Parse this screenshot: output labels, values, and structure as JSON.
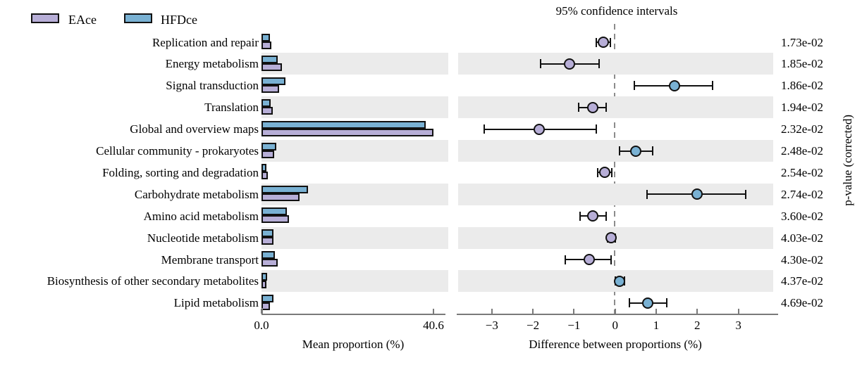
{
  "titles": {
    "ci_title": "95% confidence intervals",
    "left_xlabel": "Mean proportion (%)",
    "right_xlabel": "Difference between proportions (%)",
    "pvalue_axis_label": "p-value (corrected)"
  },
  "legend": [
    {
      "label": "EAce",
      "color": "#b7aed7"
    },
    {
      "label": "HFDce",
      "color": "#79b1d3"
    }
  ],
  "colors": {
    "eace_fill": "#b7aed7",
    "hfdce_fill": "#79b1d3",
    "ink": "#111111",
    "band": "#ebebeb",
    "axis": "#7a7a7a",
    "dashed_line": "#8c8c8c"
  },
  "chart_data": {
    "type": "bar",
    "subtype": "stamp-extended-error-bar",
    "groups": [
      "EAce",
      "HFDce"
    ],
    "left_axis": {
      "label": "Mean proportion (%)",
      "range": [
        0,
        40.6
      ],
      "ticks": [
        {
          "v": 0,
          "label": "0.0"
        },
        {
          "v": 40.6,
          "label": "40.6"
        }
      ]
    },
    "right_axis": {
      "label": "Difference between proportions (%)",
      "range": [
        -3.8,
        3.9
      ],
      "ticks": [
        {
          "v": -3,
          "label": "−3"
        },
        {
          "v": -2,
          "label": "−2"
        },
        {
          "v": -1,
          "label": "−1"
        },
        {
          "v": 0,
          "label": "0"
        },
        {
          "v": 1,
          "label": "1"
        },
        {
          "v": 2,
          "label": "2"
        },
        {
          "v": 3,
          "label": "3"
        }
      ]
    },
    "rows": [
      {
        "category": "Replication and repair",
        "mean_HFDce": 2.0,
        "mean_EAce": 2.3,
        "diff": -0.28,
        "ci": [
          -0.46,
          -0.11
        ],
        "enriched": "EAce",
        "p_value": "1.73e-02"
      },
      {
        "category": "Energy metabolism",
        "mean_HFDce": 3.8,
        "mean_EAce": 4.9,
        "diff": -1.11,
        "ci": [
          -1.82,
          -0.39
        ],
        "enriched": "EAce",
        "p_value": "1.85e-02"
      },
      {
        "category": "Signal transduction",
        "mean_HFDce": 5.6,
        "mean_EAce": 4.2,
        "diff": 1.44,
        "ci": [
          0.47,
          2.37
        ],
        "enriched": "HFDce",
        "p_value": "1.86e-02"
      },
      {
        "category": "Translation",
        "mean_HFDce": 2.1,
        "mean_EAce": 2.6,
        "diff": -0.54,
        "ci": [
          -0.88,
          -0.22
        ],
        "enriched": "EAce",
        "p_value": "1.94e-02"
      },
      {
        "category": "Global and overview maps",
        "mean_HFDce": 38.8,
        "mean_EAce": 40.6,
        "diff": -1.84,
        "ci": [
          -3.18,
          -0.46
        ],
        "enriched": "EAce",
        "p_value": "2.32e-02"
      },
      {
        "category": "Cellular community - prokaryotes",
        "mean_HFDce": 3.5,
        "mean_EAce": 3.0,
        "diff": 0.51,
        "ci": [
          0.11,
          0.91
        ],
        "enriched": "HFDce",
        "p_value": "2.48e-02"
      },
      {
        "category": "Folding, sorting and degradation",
        "mean_HFDce": 1.2,
        "mean_EAce": 1.5,
        "diff": -0.25,
        "ci": [
          -0.42,
          -0.08
        ],
        "enriched": "EAce",
        "p_value": "2.54e-02"
      },
      {
        "category": "Carbohydrate metabolism",
        "mean_HFDce": 11.0,
        "mean_EAce": 9.0,
        "diff": 2.0,
        "ci": [
          0.78,
          3.18
        ],
        "enriched": "HFDce",
        "p_value": "2.74e-02"
      },
      {
        "category": "Amino acid metabolism",
        "mean_HFDce": 6.0,
        "mean_EAce": 6.5,
        "diff": -0.54,
        "ci": [
          -0.86,
          -0.21
        ],
        "enriched": "EAce",
        "p_value": "3.60e-02"
      },
      {
        "category": "Nucleotide metabolism",
        "mean_HFDce": 2.8,
        "mean_EAce": 2.9,
        "diff": -0.09,
        "ci": [
          -0.19,
          0.01
        ],
        "enriched": "EAce",
        "p_value": "4.03e-02"
      },
      {
        "category": "Membrane transport",
        "mean_HFDce": 3.2,
        "mean_EAce": 3.8,
        "diff": -0.63,
        "ci": [
          -1.21,
          -0.09
        ],
        "enriched": "EAce",
        "p_value": "4.30e-02"
      },
      {
        "category": "Biosynthesis of other secondary metabolites",
        "mean_HFDce": 1.3,
        "mean_EAce": 1.2,
        "diff": 0.11,
        "ci": [
          0.0,
          0.23
        ],
        "enriched": "HFDce",
        "p_value": "4.37e-02"
      },
      {
        "category": "Lipid metabolism",
        "mean_HFDce": 2.8,
        "mean_EAce": 2.0,
        "diff": 0.79,
        "ci": [
          0.34,
          1.25
        ],
        "enriched": "HFDce",
        "p_value": "4.69e-02"
      }
    ]
  }
}
